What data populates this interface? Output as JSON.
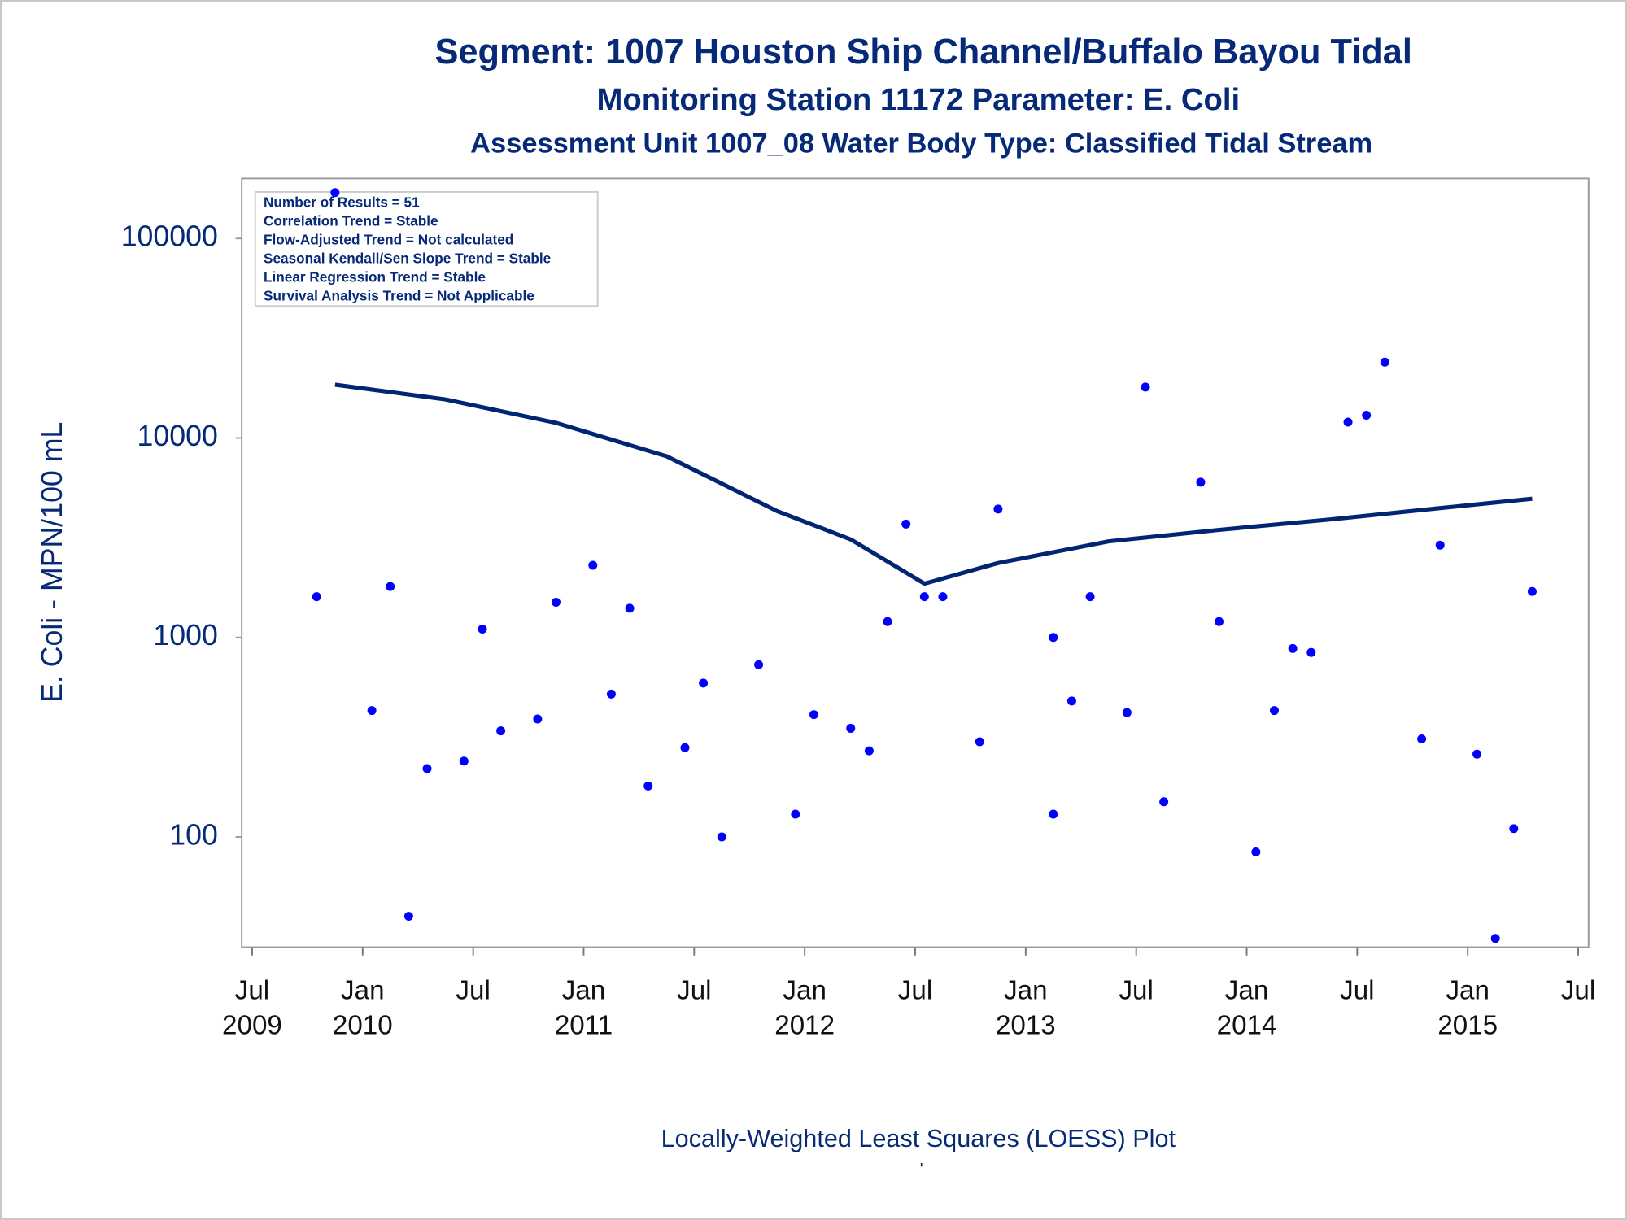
{
  "chart_data": {
    "type": "scatter",
    "title": "Segment: 1007  Houston Ship Channel/Buffalo Bayou Tidal",
    "subtitle": "Monitoring Station 11172 Parameter: E. Coli",
    "subtitle2": "Assessment Unit 1007_08   Water Body Type: Classified Tidal Stream",
    "ylabel": "E. Coli - MPN/100 mL",
    "footnote": "Locally-Weighted Least Squares (LOESS) Plot",
    "footnote2": "'",
    "annotations": [
      "Number of Results = 51",
      "Correlation Trend = Stable",
      "Flow-Adjusted Trend = Not calculated",
      "Seasonal Kendall/Sen Slope Trend = Stable",
      "Linear Regression Trend = Stable",
      "Survival Analysis Trend = Not Applicable"
    ],
    "yscale": "log",
    "ylim": [
      28,
      200000
    ],
    "yticks": [
      100,
      1000,
      10000,
      100000
    ],
    "xlim": [
      "2009-07",
      "2015-07"
    ],
    "xticks": [
      {
        "value": "2009-07",
        "label": "Jul 2009"
      },
      {
        "value": "2010-01",
        "label": "Jan 2010"
      },
      {
        "value": "2010-07",
        "label": "Jul"
      },
      {
        "value": "2011-01",
        "label": "Jan 2011"
      },
      {
        "value": "2011-07",
        "label": "Jul"
      },
      {
        "value": "2012-01",
        "label": "Jan 2012"
      },
      {
        "value": "2012-07",
        "label": "Jul"
      },
      {
        "value": "2013-01",
        "label": "Jan 2013"
      },
      {
        "value": "2013-07",
        "label": "Jul"
      },
      {
        "value": "2014-01",
        "label": "Jan 2014"
      },
      {
        "value": "2014-07",
        "label": "Jul"
      },
      {
        "value": "2015-01",
        "label": "Jan 2015"
      },
      {
        "value": "2015-07",
        "label": "Jul"
      }
    ],
    "series": [
      {
        "type": "scatter",
        "color": "#0000ff",
        "x": [
          "2009-10",
          "2009-11",
          "2010-01",
          "2010-02",
          "2010-03",
          "2010-04",
          "2010-06",
          "2010-07",
          "2010-08",
          "2010-10",
          "2010-11",
          "2011-01",
          "2011-02",
          "2011-03",
          "2011-04",
          "2011-06",
          "2011-07",
          "2011-08",
          "2011-10",
          "2011-12",
          "2012-01",
          "2012-03",
          "2012-04",
          "2012-05",
          "2012-06",
          "2012-07",
          "2012-08",
          "2012-10",
          "2012-11",
          "2013-02",
          "2013-02",
          "2013-03",
          "2013-04",
          "2013-06",
          "2013-07",
          "2013-08",
          "2013-10",
          "2013-11",
          "2014-01",
          "2014-02",
          "2014-03",
          "2014-04",
          "2014-06",
          "2014-07",
          "2014-08",
          "2014-10",
          "2014-11",
          "2015-01",
          "2015-02",
          "2015-03",
          "2015-04"
        ],
        "values": [
          1600,
          170000,
          430,
          1800,
          40,
          220,
          240,
          1100,
          340,
          390,
          1500,
          2300,
          520,
          1400,
          180,
          280,
          590,
          100,
          730,
          130,
          410,
          350,
          270,
          1200,
          3700,
          1600,
          1600,
          300,
          4400,
          1000,
          130,
          480,
          1600,
          420,
          18000,
          150,
          6000,
          1200,
          84,
          430,
          880,
          840,
          12000,
          13000,
          24000,
          310,
          2900,
          260,
          31,
          110,
          1700
        ]
      },
      {
        "type": "line",
        "color": "#002673",
        "x": [
          "2009-11",
          "2010-05",
          "2010-11",
          "2011-05",
          "2011-11",
          "2012-03",
          "2012-07",
          "2012-11",
          "2013-05",
          "2013-11",
          "2014-05",
          "2014-11",
          "2015-04"
        ],
        "values": [
          18500,
          15600,
          11900,
          8100,
          4300,
          3100,
          1860,
          2360,
          3030,
          3460,
          3900,
          4450,
          4960
        ]
      }
    ]
  }
}
